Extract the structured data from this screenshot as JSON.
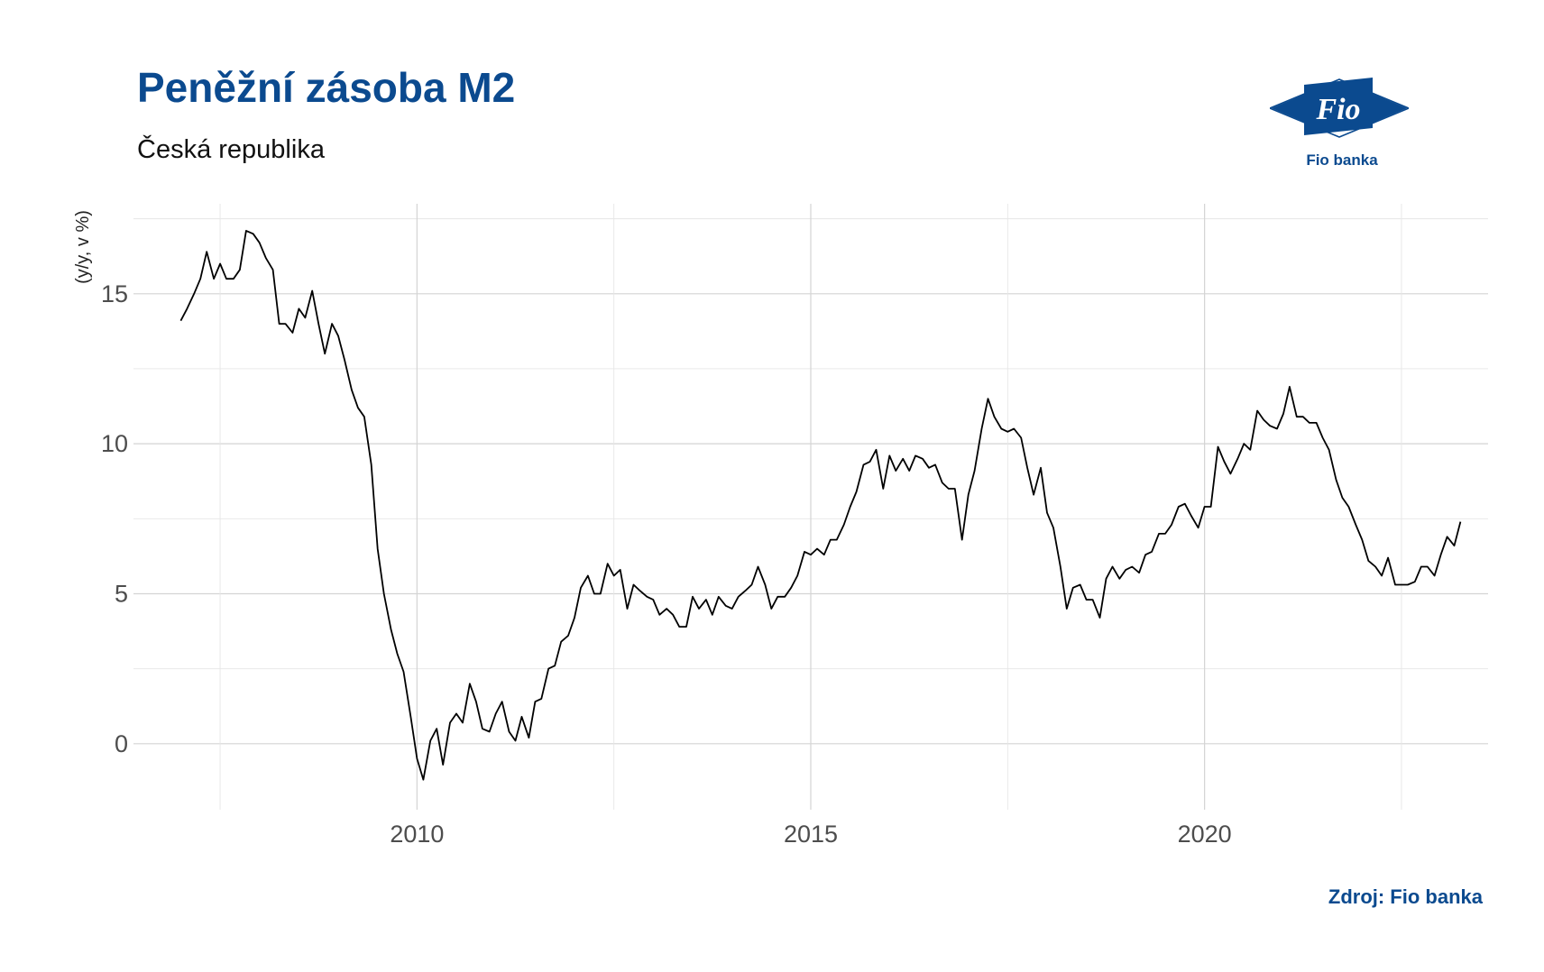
{
  "header": {
    "title": "Peněžní zásoba M2",
    "subtitle": "Česká republika"
  },
  "logo": {
    "mark_text": "Fio",
    "caption": "Fio banka",
    "color": "#0b4a8f"
  },
  "footer": {
    "source": "Zdroj: Fio banka"
  },
  "chart_data": {
    "type": "line",
    "title": "Peněžní zásoba M2",
    "subtitle": "Česká republika",
    "xlabel": "",
    "ylabel": "(y/y, v %)",
    "x_ticks": [
      2010,
      2015,
      2020
    ],
    "y_ticks": [
      0,
      5,
      10,
      15
    ],
    "xlim": [
      2006.4,
      2023.6
    ],
    "ylim": [
      -2.2,
      18.0
    ],
    "grid": true,
    "line_color": "#000000",
    "series": [
      {
        "x": [
          2007.0,
          2007.08,
          2007.17,
          2007.25,
          2007.33,
          2007.42,
          2007.5,
          2007.58,
          2007.67,
          2007.75,
          2007.83,
          2007.92,
          2008.0,
          2008.08,
          2008.17,
          2008.25,
          2008.33,
          2008.42,
          2008.5,
          2008.58,
          2008.67,
          2008.75,
          2008.83,
          2008.92,
          2009.0,
          2009.08,
          2009.17,
          2009.25,
          2009.33,
          2009.42,
          2009.5,
          2009.58,
          2009.67,
          2009.75,
          2009.83,
          2009.92,
          2010.0,
          2010.08,
          2010.17,
          2010.25,
          2010.33,
          2010.42,
          2010.5,
          2010.58,
          2010.67,
          2010.75,
          2010.83,
          2010.92,
          2011.0,
          2011.08,
          2011.17,
          2011.25,
          2011.33,
          2011.42,
          2011.5,
          2011.58,
          2011.67,
          2011.75,
          2011.83,
          2011.92,
          2012.0,
          2012.08,
          2012.17,
          2012.25,
          2012.33,
          2012.42,
          2012.5,
          2012.58,
          2012.67,
          2012.75,
          2012.83,
          2012.92,
          2013.0,
          2013.08,
          2013.17,
          2013.25,
          2013.33,
          2013.42,
          2013.5,
          2013.58,
          2013.67,
          2013.75,
          2013.83,
          2013.92,
          2014.0,
          2014.08,
          2014.17,
          2014.25,
          2014.33,
          2014.42,
          2014.5,
          2014.58,
          2014.67,
          2014.75,
          2014.83,
          2014.92,
          2015.0,
          2015.08,
          2015.17,
          2015.25,
          2015.33,
          2015.42,
          2015.5,
          2015.58,
          2015.67,
          2015.75,
          2015.83,
          2015.92,
          2016.0,
          2016.08,
          2016.17,
          2016.25,
          2016.33,
          2016.42,
          2016.5,
          2016.58,
          2016.67,
          2016.75,
          2016.83,
          2016.92,
          2017.0,
          2017.08,
          2017.17,
          2017.25,
          2017.33,
          2017.42,
          2017.5,
          2017.58,
          2017.67,
          2017.75,
          2017.83,
          2017.92,
          2018.0,
          2018.08,
          2018.17,
          2018.25,
          2018.33,
          2018.42,
          2018.5,
          2018.58,
          2018.67,
          2018.75,
          2018.83,
          2018.92,
          2019.0,
          2019.08,
          2019.17,
          2019.25,
          2019.33,
          2019.42,
          2019.5,
          2019.58,
          2019.67,
          2019.75,
          2019.83,
          2019.92,
          2020.0,
          2020.08,
          2020.17,
          2020.25,
          2020.33,
          2020.42,
          2020.5,
          2020.58,
          2020.67,
          2020.75,
          2020.83,
          2020.92,
          2021.0,
          2021.08,
          2021.17,
          2021.25,
          2021.33,
          2021.42,
          2021.5,
          2021.58,
          2021.67,
          2021.75,
          2021.83,
          2021.92,
          2022.0,
          2022.08,
          2022.17,
          2022.25,
          2022.33,
          2022.42,
          2022.5,
          2022.58,
          2022.67,
          2022.75,
          2022.83,
          2022.92,
          2023.0,
          2023.08,
          2023.17,
          2023.25
        ],
        "y": [
          14.1,
          14.5,
          15.0,
          15.5,
          16.4,
          15.5,
          16.0,
          15.5,
          15.5,
          15.8,
          17.1,
          17.0,
          16.7,
          16.2,
          15.8,
          14.0,
          14.0,
          13.7,
          14.5,
          14.2,
          15.1,
          14.0,
          13.0,
          14.0,
          13.6,
          12.8,
          11.8,
          11.2,
          10.9,
          9.3,
          6.5,
          5.0,
          3.8,
          3.0,
          2.4,
          0.9,
          -0.5,
          -1.2,
          0.1,
          0.5,
          -0.7,
          0.7,
          1.0,
          0.7,
          2.0,
          1.4,
          0.5,
          0.4,
          1.0,
          1.4,
          0.4,
          0.1,
          0.9,
          0.2,
          1.4,
          1.5,
          2.5,
          2.6,
          3.4,
          3.6,
          4.2,
          5.2,
          5.6,
          5.0,
          5.0,
          6.0,
          5.6,
          5.8,
          4.5,
          5.3,
          5.1,
          4.9,
          4.8,
          4.3,
          4.5,
          4.3,
          3.9,
          3.9,
          4.9,
          4.5,
          4.8,
          4.3,
          4.9,
          4.6,
          4.5,
          4.9,
          5.1,
          5.3,
          5.9,
          5.3,
          4.5,
          4.9,
          4.9,
          5.2,
          5.6,
          6.4,
          6.3,
          6.5,
          6.3,
          6.8,
          6.8,
          7.3,
          7.9,
          8.4,
          9.3,
          9.4,
          9.8,
          8.5,
          9.6,
          9.1,
          9.5,
          9.1,
          9.6,
          9.5,
          9.2,
          9.3,
          8.7,
          8.5,
          8.5,
          6.8,
          8.3,
          9.1,
          10.5,
          11.5,
          10.9,
          10.5,
          10.4,
          10.5,
          10.2,
          9.2,
          8.3,
          9.2,
          7.7,
          7.2,
          5.9,
          4.5,
          5.2,
          5.3,
          4.8,
          4.8,
          4.2,
          5.5,
          5.9,
          5.5,
          5.8,
          5.9,
          5.7,
          6.3,
          6.4,
          7.0,
          7.0,
          7.3,
          7.9,
          8.0,
          7.6,
          7.2,
          7.9,
          7.9,
          9.9,
          9.4,
          9.0,
          9.5,
          10.0,
          9.8,
          11.1,
          10.8,
          10.6,
          10.5,
          11.0,
          11.9,
          10.9,
          10.9,
          10.7,
          10.7,
          10.2,
          9.8,
          8.8,
          8.2,
          7.9,
          7.3,
          6.8,
          6.1,
          5.9,
          5.6,
          6.2,
          5.3,
          5.3,
          5.3,
          5.4,
          5.9,
          5.9,
          5.6,
          6.3,
          6.9,
          6.6,
          7.4
        ]
      }
    ]
  }
}
